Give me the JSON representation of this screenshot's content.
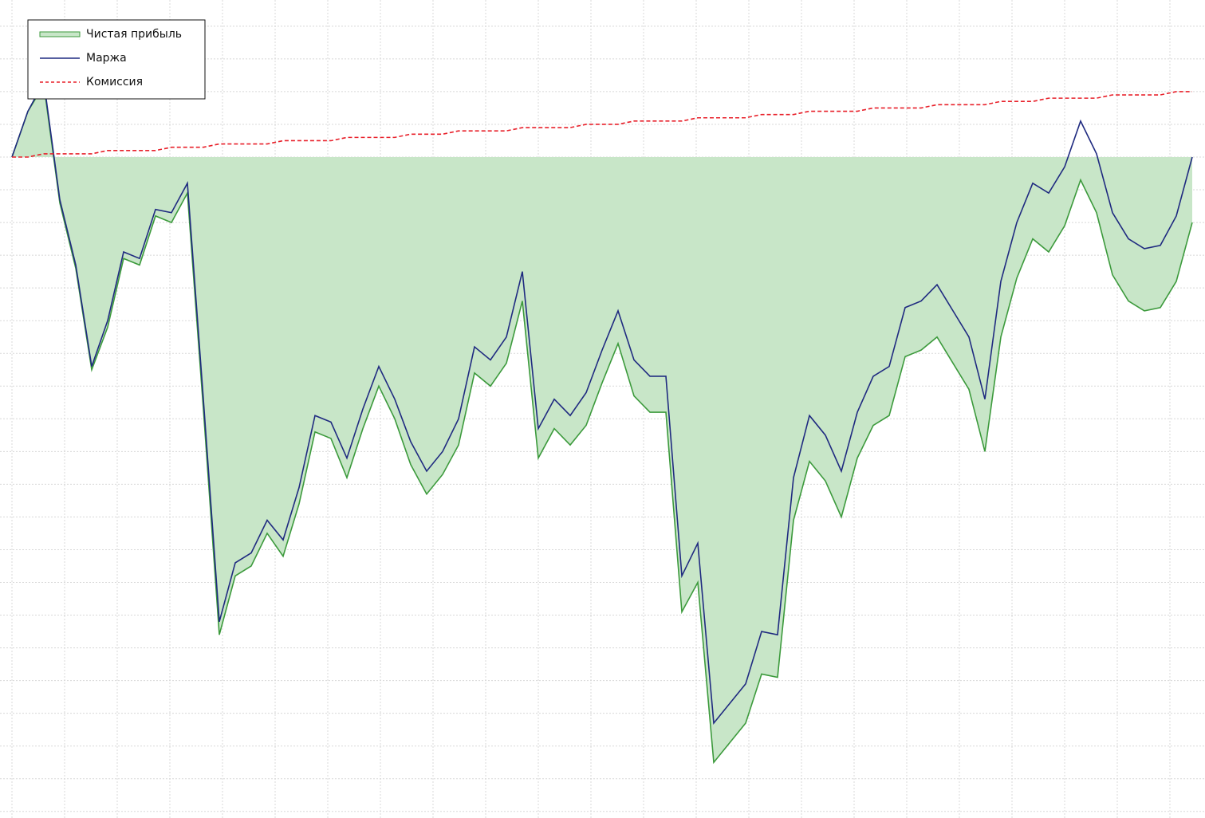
{
  "chart_data": {
    "type": "line",
    "x": [
      0,
      1,
      2,
      3,
      4,
      5,
      6,
      7,
      8,
      9,
      10,
      11,
      12,
      13,
      14,
      15,
      16,
      17,
      18,
      19,
      20,
      21,
      22,
      23,
      24,
      25,
      26,
      27,
      28,
      29,
      30,
      31,
      32,
      33,
      34,
      35,
      36,
      37,
      38,
      39,
      40,
      41,
      42,
      43,
      44,
      45,
      46,
      47,
      48,
      49,
      50,
      51,
      52,
      53,
      54,
      55,
      56,
      57,
      58,
      59,
      60,
      61,
      62,
      63,
      64,
      65,
      66,
      67,
      68,
      69,
      70,
      71,
      72,
      73,
      74
    ],
    "series": [
      {
        "name": "Чистая прибыль",
        "color": "#3c9a3c",
        "fill": "#c8e6c8",
        "values": [
          0,
          1.4,
          2.2,
          -1.4,
          -3.4,
          -6.5,
          -5.2,
          -3.1,
          -3.3,
          -1.8,
          -2.0,
          -1.1,
          -7.7,
          -14.6,
          -12.8,
          -12.5,
          -11.5,
          -12.2,
          -10.6,
          -8.4,
          -8.6,
          -9.8,
          -8.3,
          -7.0,
          -8.0,
          -9.4,
          -10.3,
          -9.7,
          -8.8,
          -6.6,
          -7.0,
          -6.3,
          -4.4,
          -9.2,
          -8.3,
          -8.8,
          -8.2,
          -6.9,
          -5.7,
          -7.3,
          -7.8,
          -7.8,
          -13.9,
          -13.0,
          -18.5,
          -17.9,
          -17.3,
          -15.8,
          -15.9,
          -11.1,
          -9.3,
          -9.9,
          -11.0,
          -9.2,
          -8.2,
          -7.9,
          -6.1,
          -5.9,
          -5.5,
          -6.3,
          -7.1,
          -9.0,
          -5.5,
          -3.7,
          -2.5,
          -2.9,
          -2.1,
          -0.7,
          -1.7,
          -3.6,
          -4.4,
          -4.7,
          -4.6,
          -3.8,
          -2.0
        ]
      },
      {
        "name": "Маржа",
        "color": "#1f2a80",
        "values": [
          0,
          1.4,
          2.3,
          -1.3,
          -3.3,
          -6.4,
          -5.0,
          -2.9,
          -3.1,
          -1.6,
          -1.7,
          -0.8,
          -7.4,
          -14.2,
          -12.4,
          -12.1,
          -11.1,
          -11.7,
          -10.1,
          -7.9,
          -8.1,
          -9.2,
          -7.7,
          -6.4,
          -7.4,
          -8.7,
          -9.6,
          -9.0,
          -8.0,
          -5.8,
          -6.2,
          -5.5,
          -3.5,
          -8.3,
          -7.4,
          -7.9,
          -7.2,
          -5.9,
          -4.7,
          -6.2,
          -6.7,
          -6.7,
          -12.8,
          -11.8,
          -17.3,
          -16.7,
          -16.1,
          -14.5,
          -14.6,
          -9.8,
          -7.9,
          -8.5,
          -9.6,
          -7.8,
          -6.7,
          -6.4,
          -4.6,
          -4.4,
          -3.9,
          -4.7,
          -5.5,
          -7.4,
          -3.8,
          -2.0,
          -0.8,
          -1.1,
          -0.3,
          1.1,
          0.1,
          -1.7,
          -2.5,
          -2.8,
          -2.7,
          -1.8,
          0.0
        ]
      },
      {
        "name": "Комиссия",
        "color": "#e8202a",
        "dashed": true,
        "values": [
          0,
          0.0,
          0.1,
          0.1,
          0.1,
          0.1,
          0.2,
          0.2,
          0.2,
          0.2,
          0.3,
          0.3,
          0.3,
          0.4,
          0.4,
          0.4,
          0.4,
          0.5,
          0.5,
          0.5,
          0.5,
          0.6,
          0.6,
          0.6,
          0.6,
          0.7,
          0.7,
          0.7,
          0.8,
          0.8,
          0.8,
          0.8,
          0.9,
          0.9,
          0.9,
          0.9,
          1.0,
          1.0,
          1.0,
          1.1,
          1.1,
          1.1,
          1.1,
          1.2,
          1.2,
          1.2,
          1.2,
          1.3,
          1.3,
          1.3,
          1.4,
          1.4,
          1.4,
          1.4,
          1.5,
          1.5,
          1.5,
          1.5,
          1.6,
          1.6,
          1.6,
          1.6,
          1.7,
          1.7,
          1.7,
          1.8,
          1.8,
          1.8,
          1.8,
          1.9,
          1.9,
          1.9,
          1.9,
          2.0,
          2.0
        ]
      }
    ],
    "xlim": [
      0,
      74.8
    ],
    "ylim": [
      -20.2,
      4.8
    ],
    "xticks": [
      0,
      3.3,
      6.6,
      9.9,
      13.2,
      16.5,
      19.8,
      23.1,
      26.4,
      29.7,
      33,
      36.3,
      39.6,
      42.9,
      46.2,
      49.5,
      52.8,
      56.1,
      59.4,
      62.7,
      66,
      69.3,
      72.6
    ],
    "yticks": [
      -20,
      -19,
      -18,
      -17,
      -16,
      -15,
      -14,
      -13,
      -12,
      -11,
      -10,
      -9,
      -8,
      -7,
      -6,
      -5,
      -4,
      -3,
      -2,
      -1,
      0,
      1,
      2,
      3,
      4
    ],
    "grid": true,
    "legend": "upper left"
  }
}
